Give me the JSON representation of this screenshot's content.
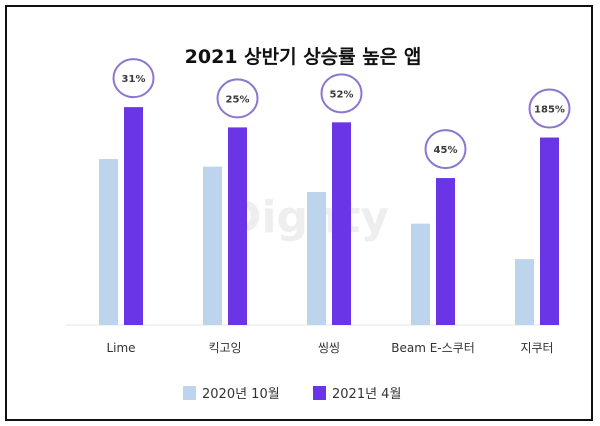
{
  "title": "2021 상반기 상승률 높은 앱",
  "watermark": "Dighty",
  "chart_data": {
    "type": "bar",
    "title": "2021 상반기 상승률 높은 앱",
    "categories": [
      "Lime",
      "킥고잉",
      "씽씽",
      "Beam E-스쿠터",
      "지쿠터"
    ],
    "series": [
      {
        "name": "2020년 10월",
        "values": [
          1.31,
          1.25,
          1.05,
          0.8,
          0.52
        ],
        "color": "#bcd4ec"
      },
      {
        "name": "2021년 4월",
        "values": [
          1.72,
          1.56,
          1.6,
          1.16,
          1.48
        ],
        "color": "#6a35e6"
      }
    ],
    "annotations": [
      "31%",
      "25%",
      "52%",
      "45%",
      "185%"
    ],
    "ylim": [
      0,
      1.8
    ],
    "grid": false,
    "legend": "bottom",
    "circle_color": "#8c76d0"
  }
}
